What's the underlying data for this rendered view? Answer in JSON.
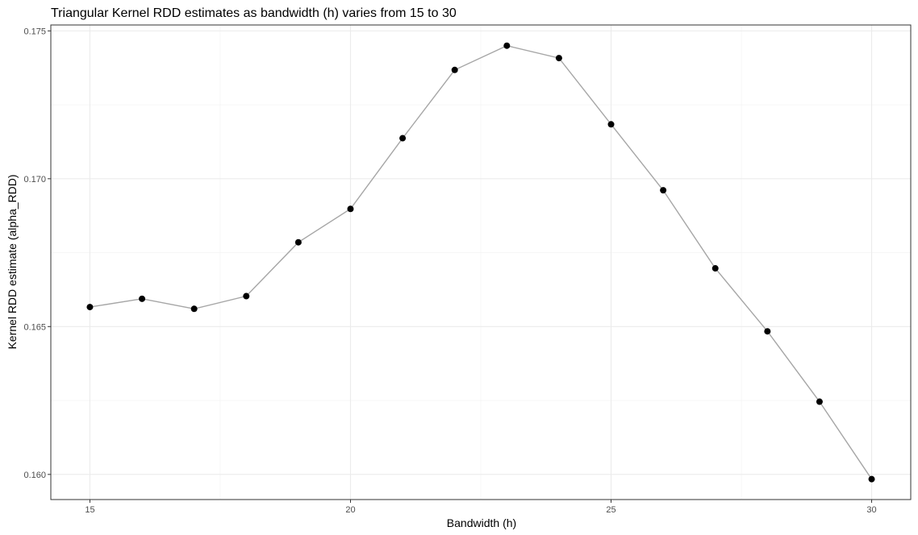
{
  "chart_data": {
    "type": "line",
    "title": "Triangular Kernel RDD estimates as bandwidth (h) varies from 15 to 30",
    "xlabel": "Bandwidth (h)",
    "ylabel": "Kernel RDD estimate (alpha_RDD)",
    "x": [
      15,
      16,
      17,
      18,
      19,
      20,
      21,
      22,
      23,
      24,
      25,
      26,
      27,
      28,
      29,
      30
    ],
    "series": [
      {
        "values": [
          0.16566,
          0.16594,
          0.1656,
          0.16603,
          0.16785,
          0.16898,
          0.17137,
          0.17368,
          0.1745,
          0.17408,
          0.17184,
          0.16961,
          0.16697,
          0.16484,
          0.16246,
          0.15984
        ]
      }
    ],
    "xlim": [
      14.25,
      30.75
    ],
    "ylim": [
      0.15915,
      0.1752
    ],
    "x_ticks": [
      15,
      20,
      25,
      30
    ],
    "x_tick_labels": [
      "15",
      "20",
      "25",
      "30"
    ],
    "y_ticks": [
      0.16,
      0.165,
      0.17,
      0.175
    ],
    "y_tick_labels": [
      "0.160",
      "0.165",
      "0.170",
      "0.175"
    ],
    "grid": true,
    "line_color": "#a6a6a6",
    "point_color": "#000000"
  }
}
